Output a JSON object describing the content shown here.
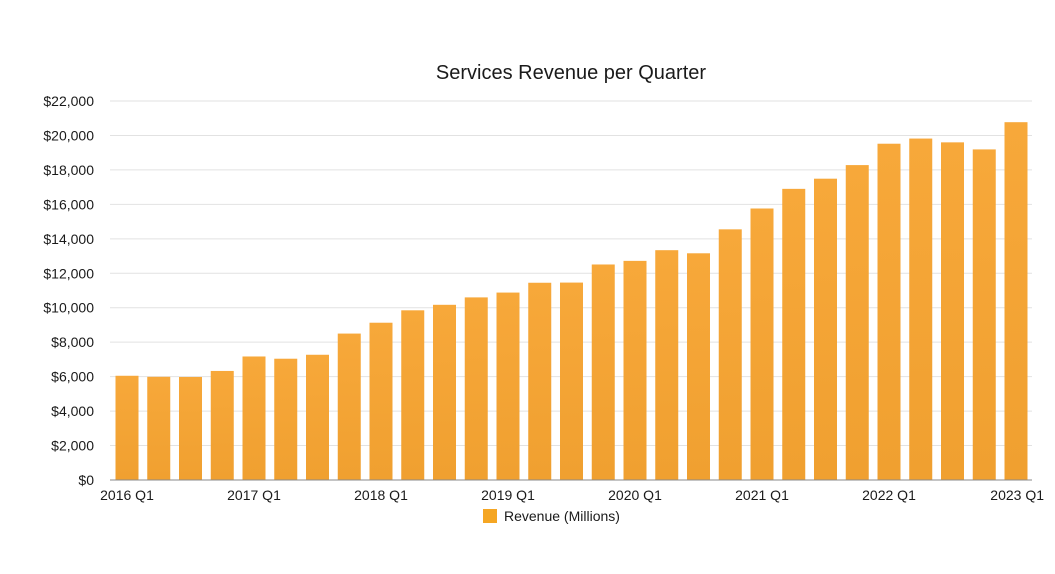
{
  "chart_data": {
    "type": "bar",
    "title": "Services Revenue per Quarter",
    "xlabel": "",
    "ylabel": "",
    "categories": [
      "2016 Q1",
      "2016 Q2",
      "2016 Q3",
      "2016 Q4",
      "2017 Q1",
      "2017 Q2",
      "2017 Q3",
      "2017 Q4",
      "2018 Q1",
      "2018 Q2",
      "2018 Q3",
      "2018 Q4",
      "2019 Q1",
      "2019 Q2",
      "2019 Q3",
      "2019 Q4",
      "2020 Q1",
      "2020 Q2",
      "2020 Q3",
      "2020 Q4",
      "2021 Q1",
      "2021 Q2",
      "2021 Q3",
      "2021 Q4",
      "2022 Q1",
      "2022 Q2",
      "2022 Q3",
      "2022 Q4",
      "2023 Q1"
    ],
    "x_tick_labels": [
      "2016 Q1",
      "2017 Q1",
      "2018 Q1",
      "2019 Q1",
      "2020 Q1",
      "2021 Q1",
      "2022 Q1",
      "2023 Q1"
    ],
    "series": [
      {
        "name": "Revenue (Millions)",
        "color": "#f5a623",
        "values": [
          6050,
          5990,
          5980,
          6330,
          7170,
          7040,
          7270,
          8500,
          9130,
          9850,
          10170,
          10600,
          10880,
          11450,
          11460,
          12510,
          12720,
          13340,
          13160,
          14550,
          15760,
          16900,
          17490,
          18280,
          19520,
          19820,
          19600,
          19190,
          20770
        ]
      }
    ],
    "ylim": [
      0,
      22000
    ],
    "y_ticks": [
      0,
      2000,
      4000,
      6000,
      8000,
      10000,
      12000,
      14000,
      16000,
      18000,
      20000,
      22000
    ],
    "y_tick_labels": [
      "$0",
      "$2,000",
      "$4,000",
      "$6,000",
      "$8,000",
      "$10,000",
      "$12,000",
      "$14,000",
      "$16,000",
      "$18,000",
      "$20,000",
      "$22,000"
    ],
    "grid": true,
    "legend_position": "bottom-center"
  }
}
